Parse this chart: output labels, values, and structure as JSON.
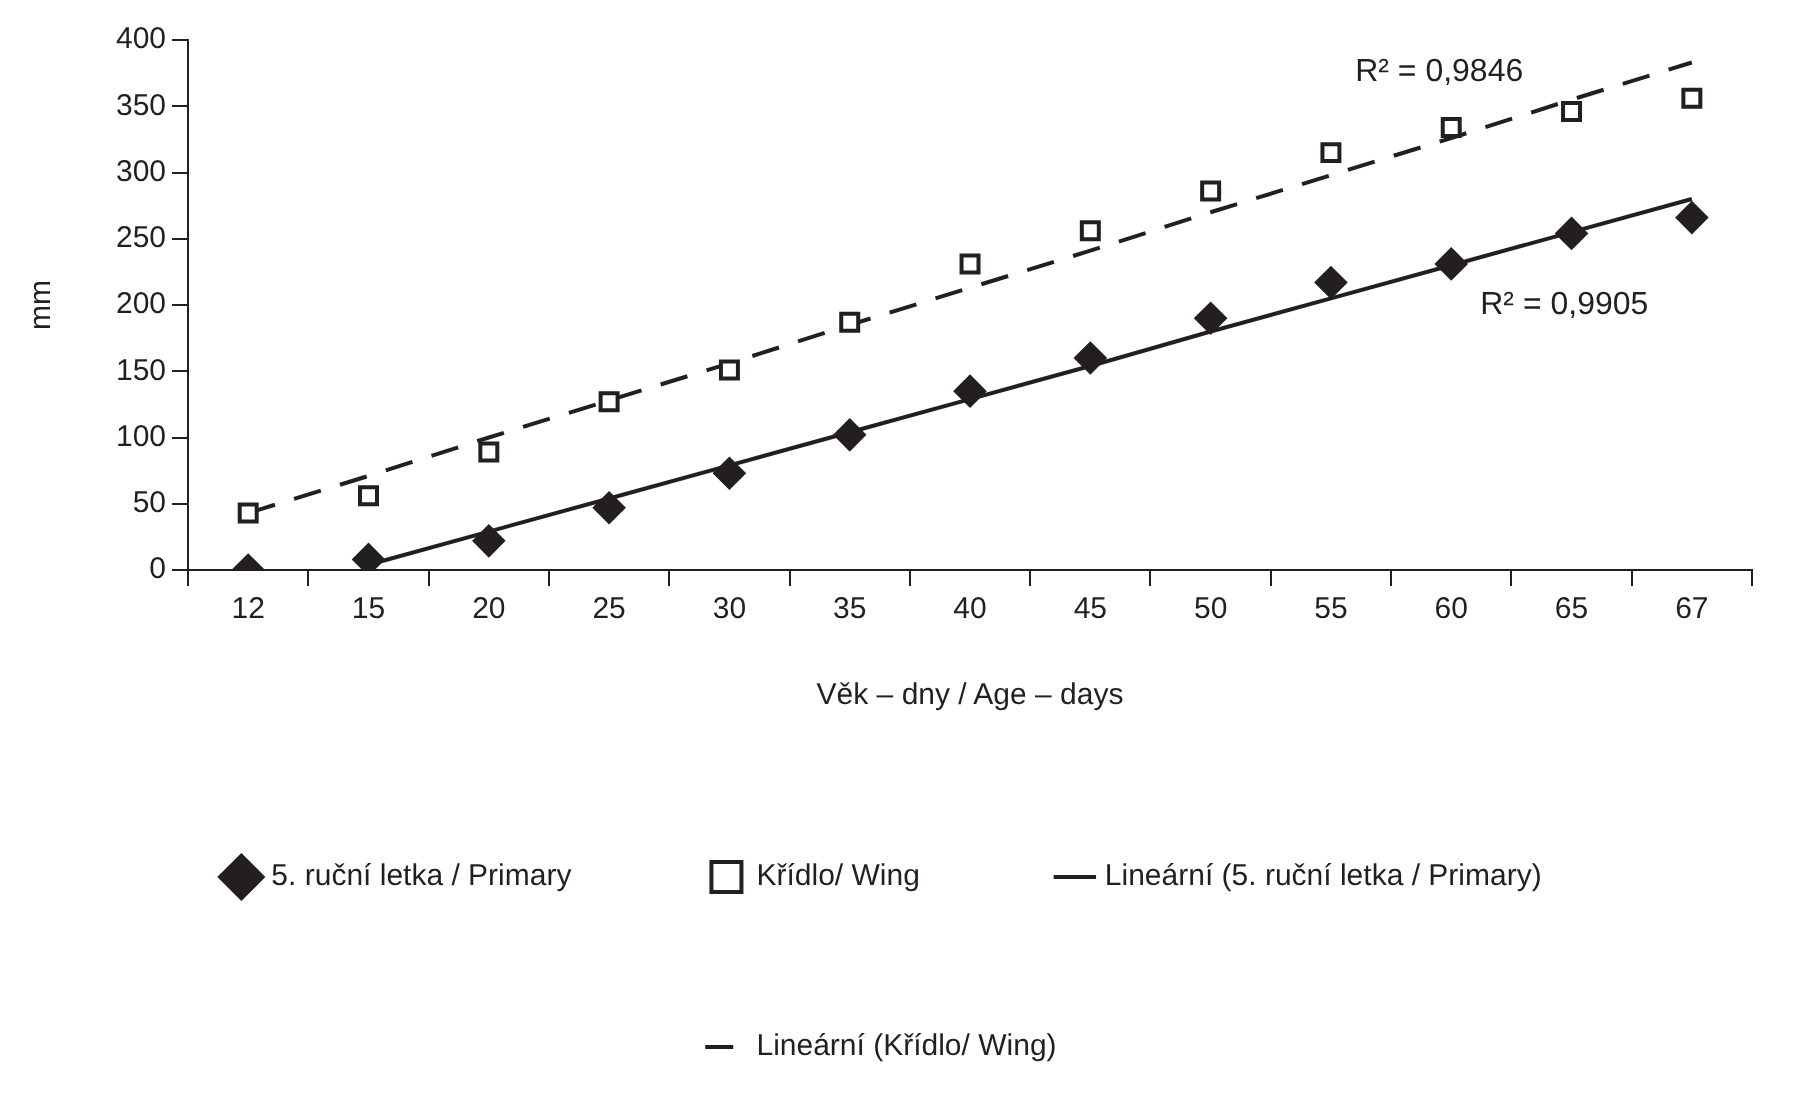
{
  "chart_data": {
    "type": "scatter",
    "xlabel": "Věk – dny / Age – days",
    "ylabel": "mm",
    "categories": [
      "12",
      "15",
      "20",
      "25",
      "30",
      "35",
      "40",
      "45",
      "50",
      "55",
      "60",
      "65",
      "67"
    ],
    "series": [
      {
        "name": "5. ruční letka / Primary",
        "type": "scatter",
        "marker": "diamond",
        "color": "#231f20",
        "values": [
          0,
          8,
          22,
          47,
          73,
          102,
          135,
          160,
          190,
          217,
          231,
          254,
          266
        ]
      },
      {
        "name": "Křídlo/ Wing",
        "type": "scatter",
        "marker": "square",
        "color": "#231f20",
        "values": [
          43,
          56,
          89,
          127,
          151,
          187,
          231,
          256,
          286,
          315,
          334,
          346,
          356
        ]
      },
      {
        "name": "Lineární (5. ruční letka / Primary)",
        "type": "line",
        "line_style": "solid",
        "marker": "none",
        "color": "#231f20",
        "values": [
          null,
          4,
          29,
          54,
          79,
          104,
          129,
          154,
          180,
          205,
          230,
          255,
          280
        ]
      },
      {
        "name": "Lineární (Křídlo/ Wing)",
        "type": "line",
        "line_style": "dashed",
        "marker": "none",
        "color": "#231f20",
        "values": [
          43,
          71,
          100,
          128,
          156,
          185,
          213,
          241,
          270,
          298,
          326,
          355,
          383
        ]
      }
    ],
    "annotations": [
      "R² = 0,9846",
      "R² = 0,9905"
    ],
    "ylim": [
      0,
      400
    ],
    "yticks": [
      0,
      50,
      100,
      150,
      200,
      250,
      300,
      350,
      400
    ],
    "grid": false,
    "legend": "bottom"
  }
}
